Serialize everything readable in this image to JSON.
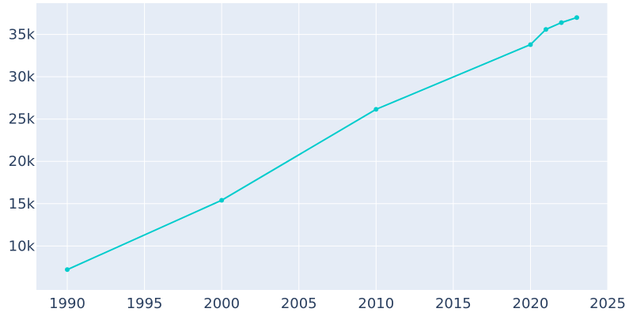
{
  "colors": {
    "plot_background": "#e5ecf6",
    "grid": "#ffffff",
    "line": "#00cccc",
    "tick_text": "#2a3f5f"
  },
  "chart_data": {
    "type": "line",
    "title": "",
    "xlabel": "",
    "ylabel": "",
    "xlim": [
      1988,
      2025
    ],
    "ylim": [
      4800,
      38700
    ],
    "grid": true,
    "x_ticks": [
      1990,
      1995,
      2000,
      2005,
      2010,
      2015,
      2020,
      2025
    ],
    "x_tick_labels": [
      "1990",
      "1995",
      "2000",
      "2005",
      "2010",
      "2015",
      "2020",
      "2025"
    ],
    "y_ticks": [
      10000,
      15000,
      20000,
      25000,
      30000,
      35000
    ],
    "y_tick_labels": [
      "10k",
      "15k",
      "20k",
      "25k",
      "30k",
      "35k"
    ],
    "series": [
      {
        "x": [
          1990,
          2000,
          2010,
          2020,
          2021,
          2022,
          2023
        ],
        "y": [
          7200,
          15400,
          26150,
          33800,
          35600,
          36400,
          37000
        ]
      }
    ]
  }
}
